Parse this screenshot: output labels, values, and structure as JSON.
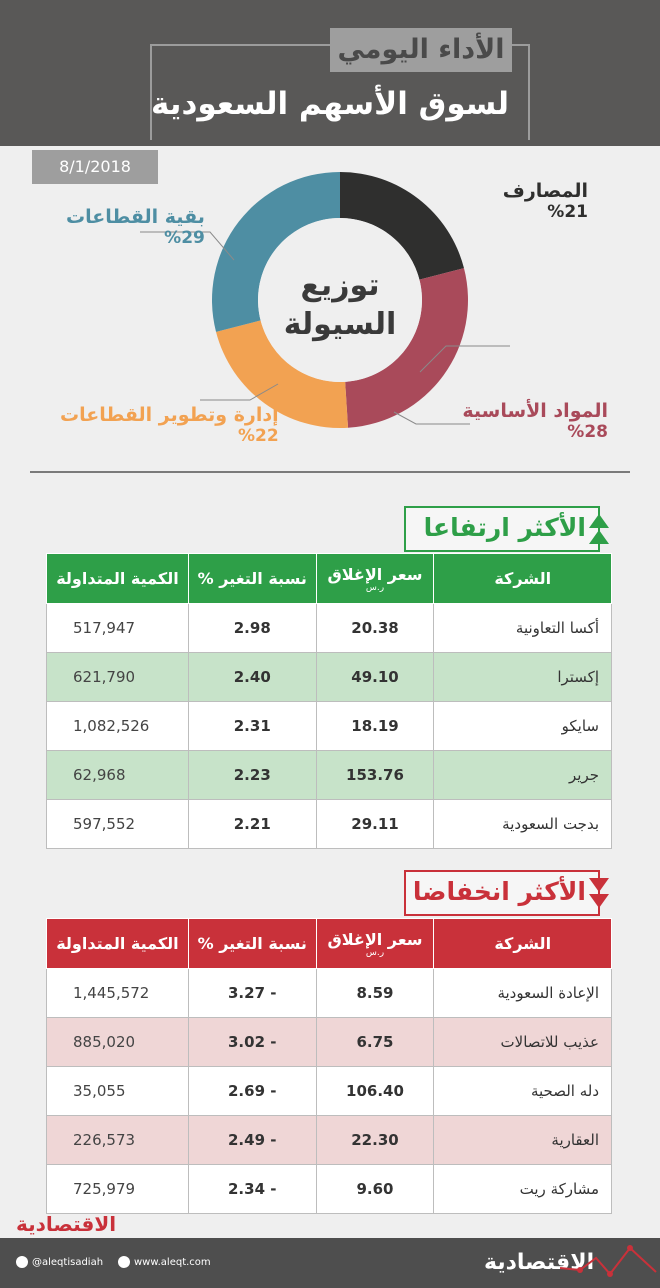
{
  "header": {
    "subtitle": "الأداء اليومي",
    "title": "لسوق الأسهم السعودية"
  },
  "date": "8/1/2018",
  "liquidity": {
    "center_line1": "توزيع",
    "center_line2": "السيولة",
    "segments": [
      {
        "name": "المصارف",
        "value": 21,
        "pct_label": "%21",
        "color": "#2f2f2e"
      },
      {
        "name": "المواد الأساسية",
        "value": 28,
        "pct_label": "%28",
        "color": "#a94a5a"
      },
      {
        "name": "إدارة وتطوير القطاعات",
        "value": 22,
        "pct_label": "%22",
        "color": "#f2a252"
      },
      {
        "name": "بقية القطاعات",
        "value": 29,
        "pct_label": "%29",
        "color": "#4e8ea3"
      }
    ]
  },
  "gainers": {
    "title": "الأكثر ارتفاعا",
    "headers": {
      "company": "الشركة",
      "price": "سعر الإغلاق",
      "price_unit": "ر.س",
      "change": "نسبة التغير %",
      "volume": "الكمية المتداولة"
    },
    "rows": [
      {
        "company": "أكسا التعاونية",
        "price": "20.38",
        "change": "2.98",
        "volume": "517,947"
      },
      {
        "company": "إكسترا",
        "price": "49.10",
        "change": "2.40",
        "volume": "621,790"
      },
      {
        "company": "سايكو",
        "price": "18.19",
        "change": "2.31",
        "volume": "1,082,526"
      },
      {
        "company": "جرير",
        "price": "153.76",
        "change": "2.23",
        "volume": "62,968"
      },
      {
        "company": "بدجت السعودية",
        "price": "29.11",
        "change": "2.21",
        "volume": "597,552"
      }
    ]
  },
  "losers": {
    "title": "الأكثر انخفاضا",
    "headers": {
      "company": "الشركة",
      "price": "سعر الإغلاق",
      "price_unit": "ر.س",
      "change": "نسبة التغير %",
      "volume": "الكمية المتداولة"
    },
    "rows": [
      {
        "company": "الإعادة السعودية",
        "price": "8.59",
        "change": "- 3.27",
        "volume": "1,445,572"
      },
      {
        "company": "عذيب للاتصالات",
        "price": "6.75",
        "change": "- 3.02",
        "volume": "885,020"
      },
      {
        "company": "دله الصحية",
        "price": "106.40",
        "change": "- 2.69",
        "volume": "35,055"
      },
      {
        "company": "العقارية",
        "price": "22.30",
        "change": "- 2.49",
        "volume": "226,573"
      },
      {
        "company": "مشاركة ريت",
        "price": "9.60",
        "change": "- 2.34",
        "volume": "725,979"
      }
    ]
  },
  "footer": {
    "brand": "الاقتصادية",
    "twitter": "@aleqtisadiah",
    "website": "www.aleqt.com"
  }
}
